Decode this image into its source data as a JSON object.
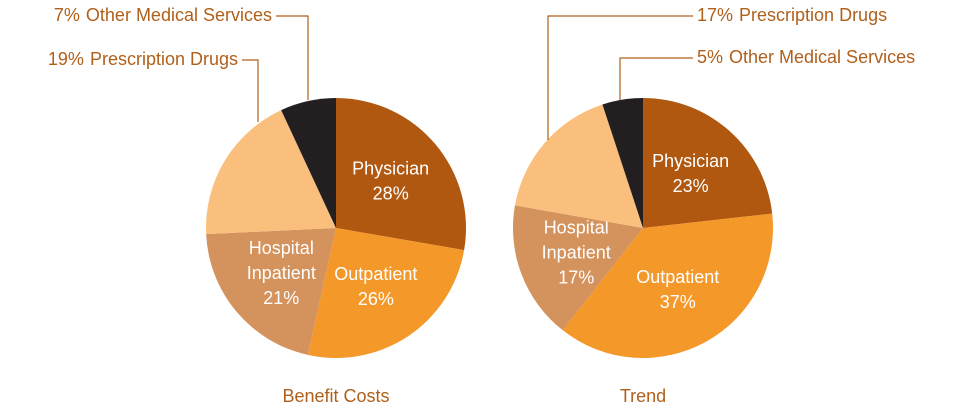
{
  "chart_data": [
    {
      "type": "pie",
      "title": "Benefit Costs",
      "categories": [
        "Physician",
        "Outpatient",
        "Hospital Inpatient",
        "Prescription Drugs",
        "Other Medical Services"
      ],
      "values": [
        28,
        26,
        21,
        19,
        7
      ],
      "value_labels": [
        "28%",
        "26%",
        "21%",
        "19%",
        "7%"
      ],
      "colors": [
        "#b0580f",
        "#f5982a",
        "#d4925c",
        "#fbbf7d",
        "#231f20"
      ]
    },
    {
      "type": "pie",
      "title": "Trend",
      "categories": [
        "Physician",
        "Outpatient",
        "Hospital Inpatient",
        "Prescription Drugs",
        "Other Medical Services"
      ],
      "values": [
        23,
        37,
        17,
        17,
        5
      ],
      "value_labels": [
        "23%",
        "37%",
        "17%",
        "17%",
        "5%"
      ],
      "colors": [
        "#b0580f",
        "#f5982a",
        "#d4925c",
        "#fbbf7d",
        "#231f20"
      ]
    }
  ]
}
